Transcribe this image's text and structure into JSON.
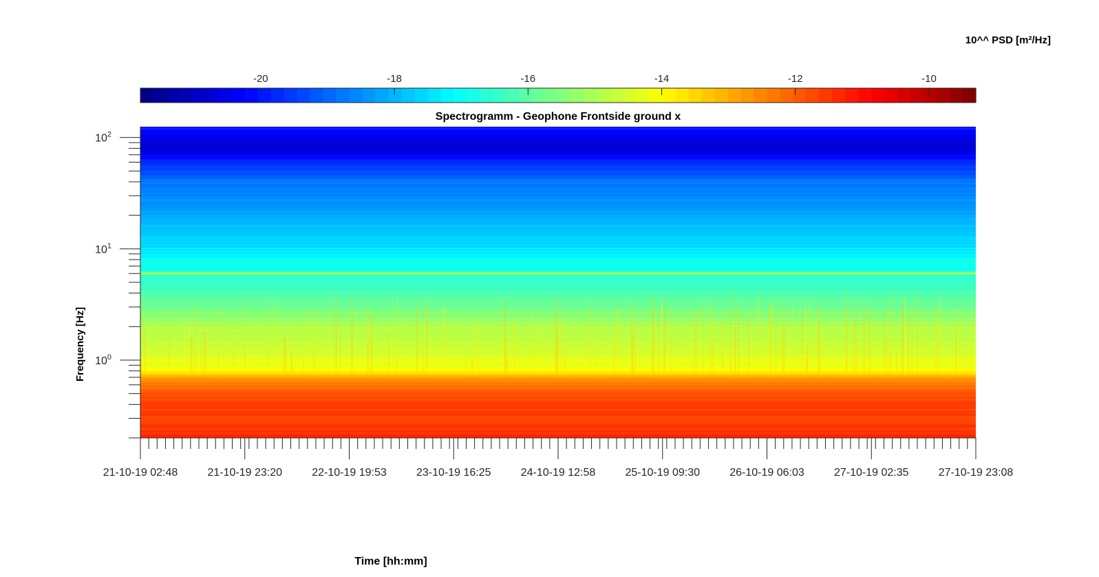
{
  "chart_data": {
    "type": "heatmap",
    "title": "Spectrogramm - Geophone Frontside ground x",
    "xlabel": "Time [hh:mm]",
    "ylabel": "Frequency [Hz]",
    "x_tick_labels": [
      "21-10-19 02:48",
      "21-10-19 23:20",
      "22-10-19 19:53",
      "23-10-19 16:25",
      "24-10-19 12:58",
      "25-10-19 09:30",
      "26-10-19 06:03",
      "27-10-19 02:35",
      "27-10-19 23:08"
    ],
    "x_range": [
      "21-10-19 02:48",
      "27-10-19 23:08"
    ],
    "y_scale": "log",
    "y_ticks": [
      {
        "base": "10",
        "exp": "0",
        "value": 1
      },
      {
        "base": "10",
        "exp": "1",
        "value": 10
      },
      {
        "base": "10",
        "exp": "2",
        "value": 100
      }
    ],
    "y_range": [
      0.2,
      125
    ],
    "colorbar": {
      "label": "10^^ PSD [m²/Hz]",
      "location": "top",
      "ticks": [
        "-20",
        "-18",
        "-16",
        "-14",
        "-12",
        "-10"
      ],
      "tick_values": [
        -20,
        -18,
        -16,
        -14,
        -12,
        -10
      ],
      "range": [
        -21.8,
        -9.3
      ],
      "colormap": "jet"
    },
    "psd_profile_log10": [
      {
        "freq_hz": 0.2,
        "psd": -11.4
      },
      {
        "freq_hz": 0.3,
        "psd": -11.6
      },
      {
        "freq_hz": 0.5,
        "psd": -11.8
      },
      {
        "freq_hz": 0.7,
        "psd": -12.8
      },
      {
        "freq_hz": 0.8,
        "psd": -14.0
      },
      {
        "freq_hz": 1.0,
        "psd": -14.4
      },
      {
        "freq_hz": 2.0,
        "psd": -15.0
      },
      {
        "freq_hz": 4.0,
        "psd": -16.2
      },
      {
        "freq_hz": 5.8,
        "psd": -16.6
      },
      {
        "freq_hz": 6.0,
        "psd": -14.6
      },
      {
        "freq_hz": 6.3,
        "psd": -16.8
      },
      {
        "freq_hz": 10.0,
        "psd": -17.4
      },
      {
        "freq_hz": 20.0,
        "psd": -18.2
      },
      {
        "freq_hz": 40.0,
        "psd": -18.8
      },
      {
        "freq_hz": 60.0,
        "psd": -19.8
      },
      {
        "freq_hz": 80.0,
        "psd": -20.8
      },
      {
        "freq_hz": 100.0,
        "psd": -20.6
      },
      {
        "freq_hz": 125.0,
        "psd": -19.8
      }
    ],
    "grid": false
  }
}
